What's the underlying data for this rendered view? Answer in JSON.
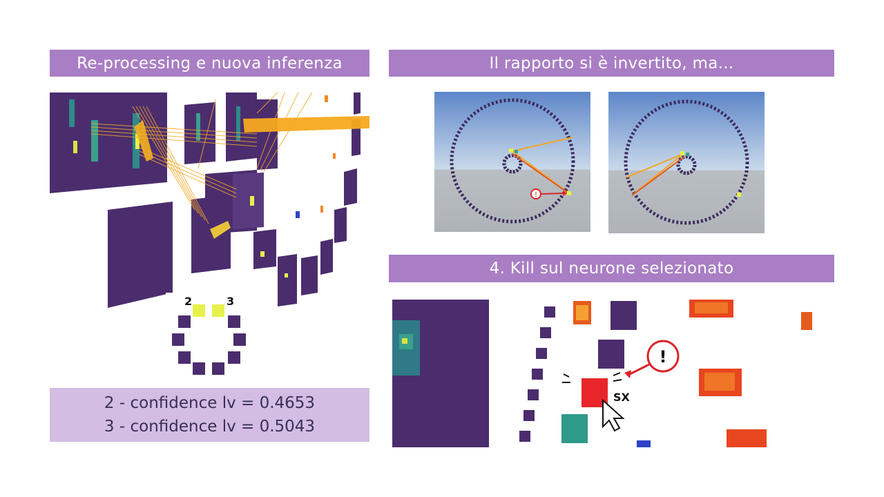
{
  "left_title": "Re-processing e nuova inferenza",
  "right_title": "Il rapporto si è invertito, ma...",
  "kill_title": "4. Kill sul neurone selezionato",
  "confidence": [
    "2 - confidence lv = 0.4653",
    "3 - confidence lv = 0.5043"
  ],
  "output_labels": {
    "two": "2",
    "three": "3"
  },
  "kill_annotation": "SX",
  "warning_symbol": "!",
  "colors": {
    "banner": "#a97ec4",
    "confidence_bg": "#d3bde2",
    "neuron_dark": "#4b2d6e",
    "neuron_active": "#e6f24a",
    "killed_neuron": "#e8262a",
    "connection": "#f5a623"
  },
  "icons": [
    "warning-icon",
    "cursor-icon"
  ]
}
